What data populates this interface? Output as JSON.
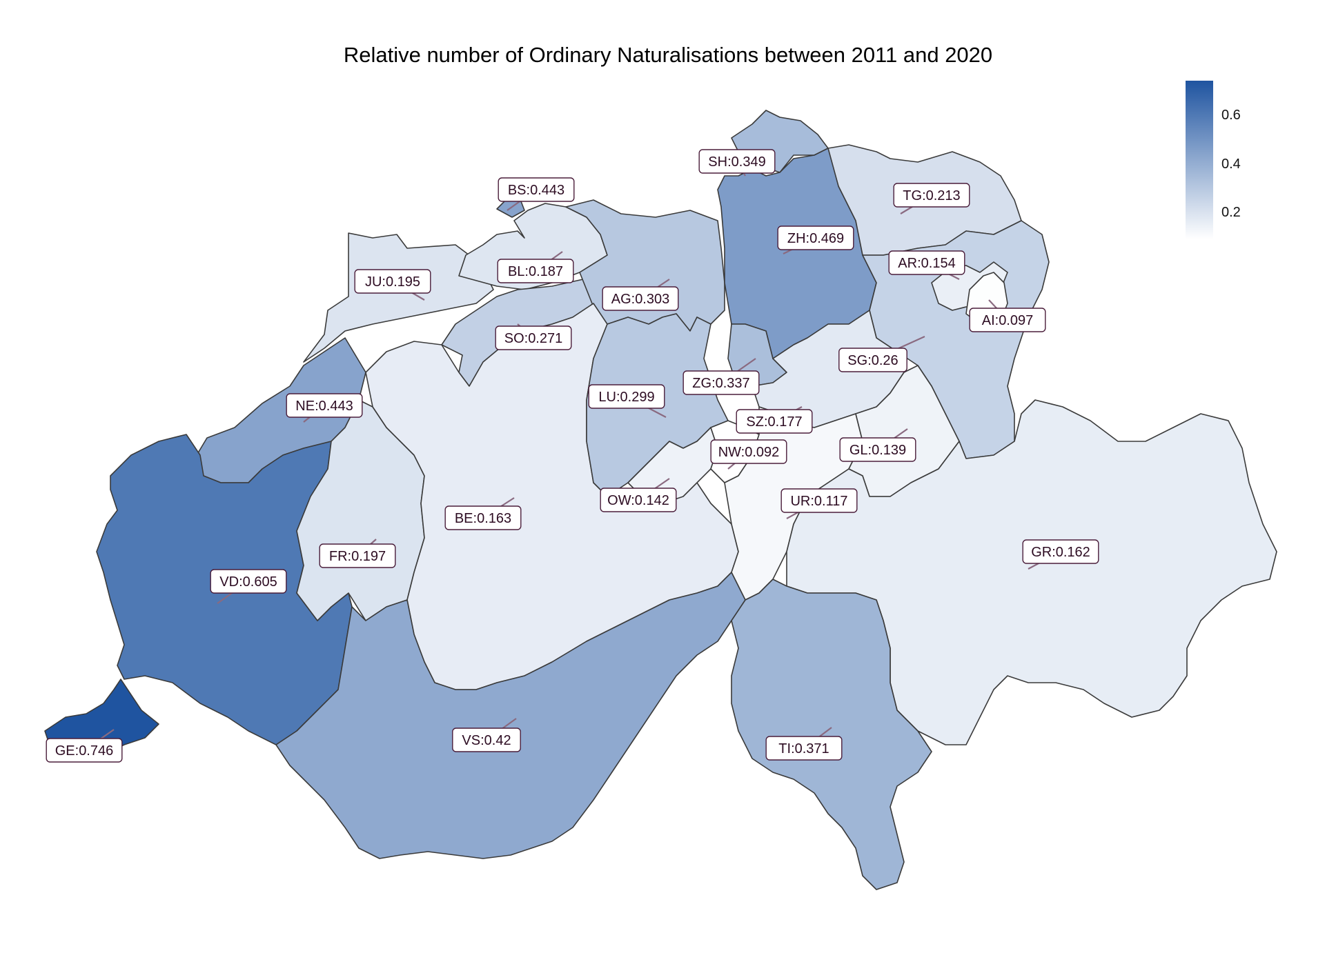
{
  "title": "Relative number of Ordinary Naturalisations between 2011 and 2020",
  "legend": {
    "min": 0.092,
    "max": 0.746,
    "color_low": "#ffffff",
    "color_high": "#1f54a0",
    "ticks": [
      {
        "value": 0.6,
        "label": "0.6"
      },
      {
        "value": 0.4,
        "label": "0.4"
      },
      {
        "value": 0.2,
        "label": "0.2"
      }
    ]
  },
  "cantons": [
    {
      "code": "GE",
      "value": 0.746,
      "label": "GE:0.746"
    },
    {
      "code": "VD",
      "value": 0.605,
      "label": "VD:0.605"
    },
    {
      "code": "ZH",
      "value": 0.469,
      "label": "ZH:0.469"
    },
    {
      "code": "BS",
      "value": 0.443,
      "label": "BS:0.443"
    },
    {
      "code": "NE",
      "value": 0.443,
      "label": "NE:0.443"
    },
    {
      "code": "VS",
      "value": 0.42,
      "label": "VS:0.42"
    },
    {
      "code": "TI",
      "value": 0.371,
      "label": "TI:0.371"
    },
    {
      "code": "SH",
      "value": 0.349,
      "label": "SH:0.349"
    },
    {
      "code": "ZG",
      "value": 0.337,
      "label": "ZG:0.337"
    },
    {
      "code": "AG",
      "value": 0.303,
      "label": "AG:0.303"
    },
    {
      "code": "LU",
      "value": 0.299,
      "label": "LU:0.299"
    },
    {
      "code": "SO",
      "value": 0.271,
      "label": "SO:0.271"
    },
    {
      "code": "SG",
      "value": 0.26,
      "label": "SG:0.26"
    },
    {
      "code": "TG",
      "value": 0.213,
      "label": "TG:0.213"
    },
    {
      "code": "FR",
      "value": 0.197,
      "label": "FR:0.197"
    },
    {
      "code": "JU",
      "value": 0.195,
      "label": "JU:0.195"
    },
    {
      "code": "BL",
      "value": 0.187,
      "label": "BL:0.187"
    },
    {
      "code": "SZ",
      "value": 0.177,
      "label": "SZ:0.177"
    },
    {
      "code": "BE",
      "value": 0.163,
      "label": "BE:0.163"
    },
    {
      "code": "GR",
      "value": 0.162,
      "label": "GR:0.162"
    },
    {
      "code": "AR",
      "value": 0.154,
      "label": "AR:0.154"
    },
    {
      "code": "OW",
      "value": 0.142,
      "label": "OW:0.142"
    },
    {
      "code": "GL",
      "value": 0.139,
      "label": "GL:0.139"
    },
    {
      "code": "UR",
      "value": 0.117,
      "label": "UR:0.117"
    },
    {
      "code": "AI",
      "value": 0.097,
      "label": "AI:0.097"
    },
    {
      "code": "NW",
      "value": 0.092,
      "label": "NW:0.092"
    }
  ]
}
